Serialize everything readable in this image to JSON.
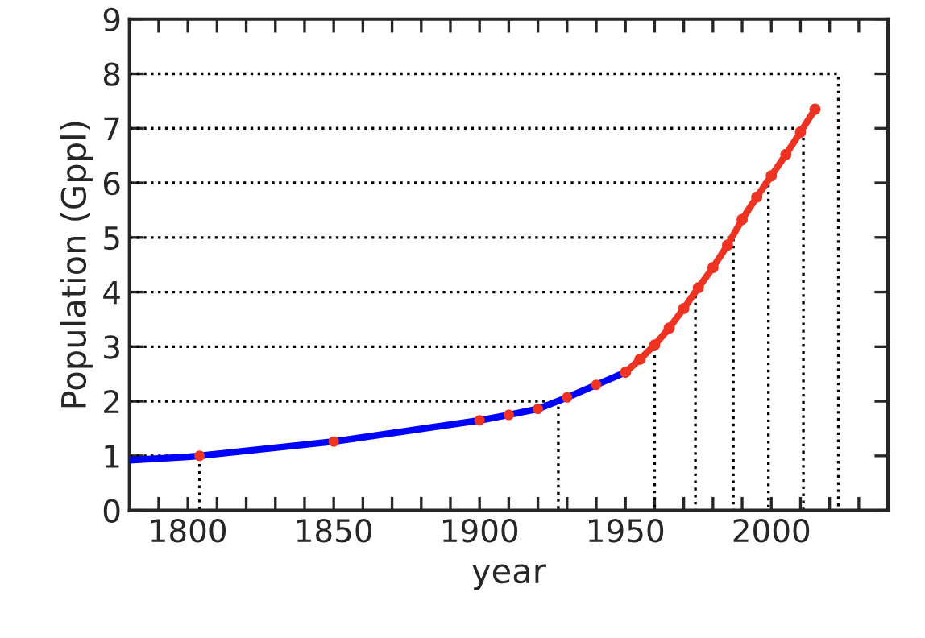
{
  "chart_data": {
    "type": "line",
    "xlabel": "year",
    "ylabel": "Population (Gppl)",
    "xlim": [
      1780,
      2040
    ],
    "ylim": [
      0,
      9
    ],
    "xticks": [
      {
        "value": 1790,
        "label": null
      },
      1800,
      {
        "value": 1810,
        "label": null
      },
      {
        "value": 1820,
        "label": null
      },
      {
        "value": 1830,
        "label": null
      },
      {
        "value": 1840,
        "label": null
      },
      1850,
      {
        "value": 1860,
        "label": null
      },
      {
        "value": 1870,
        "label": null
      },
      {
        "value": 1880,
        "label": null
      },
      {
        "value": 1890,
        "label": null
      },
      1900,
      {
        "value": 1910,
        "label": null
      },
      {
        "value": 1920,
        "label": null
      },
      {
        "value": 1930,
        "label": null
      },
      {
        "value": 1940,
        "label": null
      },
      1950,
      {
        "value": 1960,
        "label": null
      },
      {
        "value": 1970,
        "label": null
      },
      {
        "value": 1980,
        "label": null
      },
      {
        "value": 1990,
        "label": null
      },
      2000,
      {
        "value": 2010,
        "label": null
      },
      {
        "value": 2020,
        "label": null
      },
      {
        "value": 2030,
        "label": null
      }
    ],
    "yticks": [
      0,
      1,
      2,
      3,
      4,
      5,
      6,
      7,
      8,
      9
    ],
    "grid": false,
    "legend": false,
    "series": [
      {
        "type": "line",
        "line_style": "dotted",
        "color": "#000000",
        "x": [
          1780,
          1804,
          1804
        ],
        "values": [
          1,
          1,
          0
        ]
      },
      {
        "type": "line",
        "line_style": "dotted",
        "color": "#000000",
        "x": [
          1780,
          1927,
          1927
        ],
        "values": [
          2,
          2,
          0
        ]
      },
      {
        "type": "line",
        "line_style": "dotted",
        "color": "#000000",
        "x": [
          1780,
          1960,
          1960
        ],
        "values": [
          3,
          3,
          0
        ]
      },
      {
        "type": "line",
        "line_style": "dotted",
        "color": "#000000",
        "x": [
          1780,
          1974,
          1974
        ],
        "values": [
          4,
          4,
          0
        ]
      },
      {
        "type": "line",
        "line_style": "dotted",
        "color": "#000000",
        "x": [
          1780,
          1987,
          1987
        ],
        "values": [
          5,
          5,
          0
        ]
      },
      {
        "type": "line",
        "line_style": "dotted",
        "color": "#000000",
        "x": [
          1780,
          1999,
          1999
        ],
        "values": [
          6,
          6,
          0
        ]
      },
      {
        "type": "line",
        "line_style": "dotted",
        "color": "#000000",
        "x": [
          1780,
          2011,
          2011
        ],
        "values": [
          7,
          7,
          0
        ]
      },
      {
        "type": "line",
        "line_style": "dotted",
        "color": "#000000",
        "x": [
          1780,
          2023,
          2023
        ],
        "values": [
          8,
          8,
          0
        ]
      },
      {
        "line_style": "solid",
        "marker": "none",
        "color": "#0000ff",
        "x": [
          1780,
          1800,
          1804,
          1850,
          1900,
          1910,
          1920,
          1930,
          1940,
          1950
        ],
        "values": [
          0.92,
          0.98,
          1.0,
          1.26,
          1.65,
          1.75,
          1.86,
          2.07,
          2.3,
          2.53
        ]
      },
      {
        "type": "scatter",
        "marker": "circle",
        "color": "#ee3322",
        "x": [
          1804,
          1850,
          1900,
          1910,
          1920,
          1930,
          1940
        ],
        "values": [
          1.0,
          1.26,
          1.65,
          1.75,
          1.86,
          2.07,
          2.3
        ]
      },
      {
        "line_style": "solid",
        "marker": "circle",
        "color": "#ee3322",
        "x": [
          1950,
          1955,
          1960,
          1965,
          1970,
          1975,
          1980,
          1985,
          1990,
          1995,
          2000,
          2005,
          2010,
          2015
        ],
        "values": [
          2.53,
          2.77,
          3.03,
          3.34,
          3.7,
          4.08,
          4.45,
          4.86,
          5.33,
          5.74,
          6.13,
          6.52,
          6.93,
          7.35
        ]
      }
    ]
  }
}
